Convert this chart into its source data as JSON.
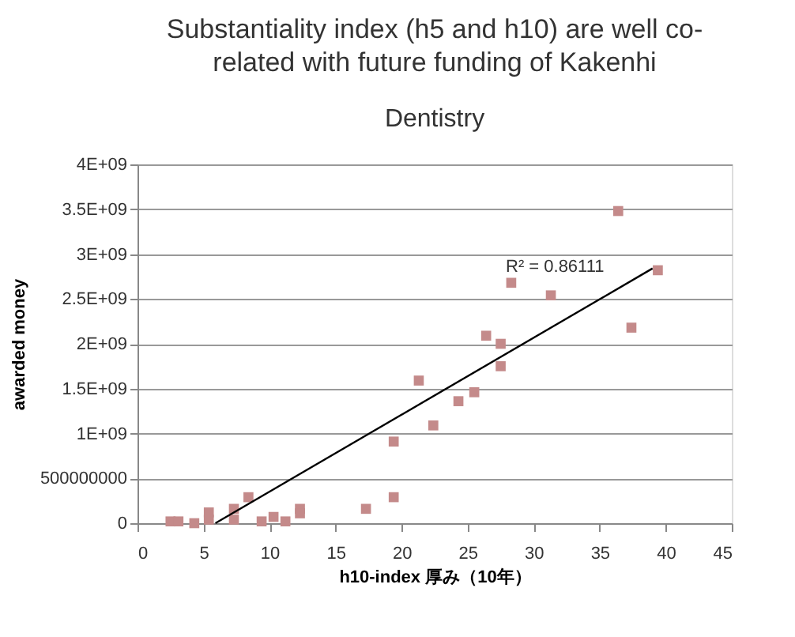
{
  "chart_data": {
    "type": "scatter",
    "title": "Substantiality index (h5 and h10) are well co-related with future funding of Kakenhi",
    "subtitle": "Dentistry",
    "xlabel": "h10-index  厚み（10年）",
    "ylabel": "awarded money",
    "xlim": [
      0,
      45
    ],
    "xticks": [
      0,
      5,
      10,
      15,
      20,
      25,
      30,
      35,
      40,
      45
    ],
    "ylim": [
      0,
      4000000000
    ],
    "yticks": [
      0,
      500000000,
      {
        "value": 1000000000,
        "label": "1E+09"
      },
      {
        "value": 1500000000,
        "label": "1.5E+09"
      },
      {
        "value": 2000000000,
        "label": "2E+09"
      },
      {
        "value": 2500000000,
        "label": "2.5E+09"
      },
      {
        "value": 3000000000,
        "label": "3E+09"
      },
      {
        "value": 3500000000,
        "label": "3.5E+09"
      },
      {
        "value": 4000000000,
        "label": "4E+09"
      }
    ],
    "grid": "y",
    "marker": "square",
    "series": [
      {
        "type": "scatter",
        "color": "#c48a8a",
        "x": [
          2.5,
          3.1,
          4.3,
          5.4,
          5.4,
          7.3,
          7.3,
          8.4,
          9.4,
          10.3,
          11.2,
          12.3,
          12.3,
          17.3,
          19.4,
          19.4,
          21.3,
          22.4,
          24.3,
          25.5,
          26.4,
          27.5,
          27.5,
          28.3,
          31.3,
          36.4,
          37.4,
          39.4
        ],
        "values": [
          20000000,
          20000000,
          0,
          120000000,
          40000000,
          160000000,
          40000000,
          290000000,
          20000000,
          70000000,
          20000000,
          160000000,
          110000000,
          160000000,
          290000000,
          910000000,
          1590000000,
          1090000000,
          1360000000,
          1460000000,
          2090000000,
          2000000000,
          1750000000,
          2680000000,
          2540000000,
          3480000000,
          2180000000,
          2820000000
        ]
      },
      {
        "type": "line",
        "color": "#000000",
        "x": [
          5.9,
          39.0
        ],
        "values": [
          0,
          2840000000
        ],
        "marker": "none",
        "line_style": "solid"
      }
    ],
    "annotations": [
      "R² = 0.86111"
    ]
  }
}
